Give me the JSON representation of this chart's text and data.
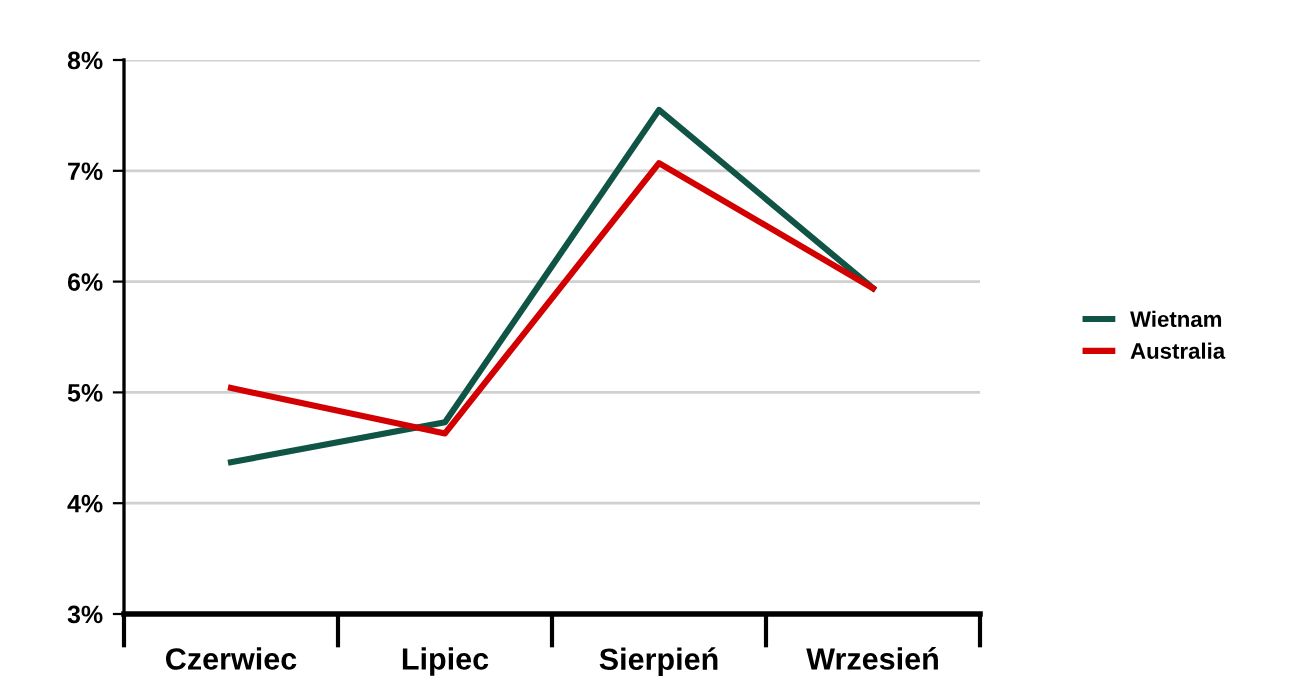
{
  "chart_data": {
    "type": "line",
    "categories": [
      "Czerwiec",
      "Lipiec",
      "Sierpień",
      "Wrzesień"
    ],
    "series": [
      {
        "name": "Wietnam",
        "color": "#0f5444",
        "values": [
          4.37,
          4.73,
          7.55,
          5.94
        ]
      },
      {
        "name": "Australia",
        "color": "#d20000",
        "values": [
          5.04,
          4.63,
          7.07,
          5.94
        ]
      }
    ],
    "ylim": [
      3,
      8
    ],
    "yticks": [
      {
        "value": 3,
        "label": "3%"
      },
      {
        "value": 4,
        "label": "4%"
      },
      {
        "value": 5,
        "label": "5%"
      },
      {
        "value": 6,
        "label": "6%"
      },
      {
        "value": 7,
        "label": "7%"
      },
      {
        "value": 8,
        "label": "8%"
      }
    ],
    "grid": "y",
    "legend": "right",
    "marker": "none",
    "line_style": "solid"
  }
}
